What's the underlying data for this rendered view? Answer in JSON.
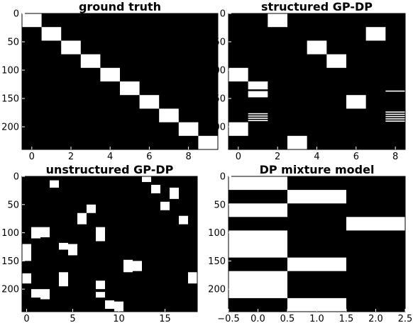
{
  "chart_data": [
    {
      "type": "heatmap",
      "title": "ground truth",
      "x_ticks": [
        "0",
        "2",
        "4",
        "6",
        "8"
      ],
      "x_tick_values": [
        0,
        2,
        4,
        6,
        8
      ],
      "y_ticks": [
        "0",
        "50",
        "100",
        "150",
        "200"
      ],
      "y_tick_values": [
        0,
        50,
        100,
        150,
        200
      ],
      "xlim": [
        -0.5,
        9.5
      ],
      "ylim": [
        240,
        0
      ],
      "colormap": [
        "#000000",
        "#ffffff"
      ],
      "cells": [
        {
          "x": 0,
          "y0": 0,
          "y1": 24
        },
        {
          "x": 1,
          "y0": 24,
          "y1": 48
        },
        {
          "x": 2,
          "y0": 48,
          "y1": 72
        },
        {
          "x": 3,
          "y0": 72,
          "y1": 96
        },
        {
          "x": 4,
          "y0": 96,
          "y1": 120
        },
        {
          "x": 5,
          "y0": 120,
          "y1": 144
        },
        {
          "x": 6,
          "y0": 144,
          "y1": 168
        },
        {
          "x": 7,
          "y0": 168,
          "y1": 192
        },
        {
          "x": 8,
          "y0": 192,
          "y1": 216
        },
        {
          "x": 9,
          "y0": 216,
          "y1": 240
        }
      ]
    },
    {
      "type": "heatmap",
      "title": "structured GP-DP",
      "x_ticks": [
        "0",
        "2",
        "4",
        "6",
        "8"
      ],
      "x_tick_values": [
        0,
        2,
        4,
        6,
        8
      ],
      "y_ticks": [
        "0",
        "50",
        "100",
        "150",
        "200"
      ],
      "y_tick_values": [
        0,
        50,
        100,
        150,
        200
      ],
      "xlim": [
        -0.5,
        8.5
      ],
      "ylim": [
        240,
        0
      ],
      "colormap": [
        "#000000",
        "#ffffff"
      ],
      "cells": [
        {
          "x": 2,
          "y0": 0,
          "y1": 24
        },
        {
          "x": 7,
          "y0": 24,
          "y1": 48
        },
        {
          "x": 4,
          "y0": 48,
          "y1": 72
        },
        {
          "x": 5,
          "y0": 72,
          "y1": 96
        },
        {
          "x": 0,
          "y0": 96,
          "y1": 120
        },
        {
          "x": 1,
          "y0": 120,
          "y1": 134
        },
        {
          "x": 1,
          "y0": 137,
          "y1": 148
        },
        {
          "x": 8,
          "y0": 136,
          "y1": 138
        },
        {
          "x": 6,
          "y0": 144,
          "y1": 168
        },
        {
          "x": 1,
          "y0": 176,
          "y1": 178
        },
        {
          "x": 1,
          "y0": 180,
          "y1": 182
        },
        {
          "x": 1,
          "y0": 184,
          "y1": 186
        },
        {
          "x": 1,
          "y0": 188,
          "y1": 190
        },
        {
          "x": 8,
          "y0": 173,
          "y1": 175
        },
        {
          "x": 8,
          "y0": 177,
          "y1": 179
        },
        {
          "x": 8,
          "y0": 181,
          "y1": 183
        },
        {
          "x": 8,
          "y0": 185,
          "y1": 187
        },
        {
          "x": 8,
          "y0": 189,
          "y1": 191
        },
        {
          "x": 0,
          "y0": 192,
          "y1": 216
        },
        {
          "x": 3,
          "y0": 216,
          "y1": 240
        }
      ]
    },
    {
      "type": "heatmap",
      "title": "unstructured GP-DP",
      "x_ticks": [
        "0",
        "5",
        "10",
        "15"
      ],
      "x_tick_values": [
        0,
        5,
        10,
        15
      ],
      "y_ticks": [
        "0",
        "50",
        "100",
        "150",
        "200"
      ],
      "y_tick_values": [
        0,
        50,
        100,
        150,
        200
      ],
      "xlim": [
        -0.5,
        18.5
      ],
      "ylim": [
        240,
        0
      ],
      "colormap": [
        "#000000",
        "#ffffff"
      ],
      "cells": [
        {
          "x": 3,
          "y0": 7,
          "y1": 20
        },
        {
          "x": 13,
          "y0": 0,
          "y1": 10
        },
        {
          "x": 14,
          "y0": 15,
          "y1": 30
        },
        {
          "x": 16,
          "y0": 20,
          "y1": 40
        },
        {
          "x": 15,
          "y0": 45,
          "y1": 60
        },
        {
          "x": 7,
          "y0": 50,
          "y1": 65
        },
        {
          "x": 6,
          "y0": 65,
          "y1": 85
        },
        {
          "x": 17,
          "y0": 70,
          "y1": 85
        },
        {
          "x": 1,
          "y0": 90,
          "y1": 110
        },
        {
          "x": 2,
          "y0": 90,
          "y1": 108
        },
        {
          "x": 8,
          "y0": 90,
          "y1": 115
        },
        {
          "x": 0,
          "y0": 120,
          "y1": 150
        },
        {
          "x": 4,
          "y0": 118,
          "y1": 130
        },
        {
          "x": 5,
          "y0": 120,
          "y1": 140
        },
        {
          "x": 11,
          "y0": 148,
          "y1": 170
        },
        {
          "x": 12,
          "y0": 150,
          "y1": 168
        },
        {
          "x": 0,
          "y0": 172,
          "y1": 190
        },
        {
          "x": 4,
          "y0": 170,
          "y1": 195
        },
        {
          "x": 8,
          "y0": 185,
          "y1": 200
        },
        {
          "x": 18,
          "y0": 170,
          "y1": 190
        },
        {
          "x": 1,
          "y0": 200,
          "y1": 215
        },
        {
          "x": 2,
          "y0": 200,
          "y1": 218
        },
        {
          "x": 8,
          "y0": 205,
          "y1": 215
        },
        {
          "x": 9,
          "y0": 220,
          "y1": 235
        },
        {
          "x": 10,
          "y0": 222,
          "y1": 240
        }
      ]
    },
    {
      "type": "heatmap",
      "title": "DP mixture model",
      "x_ticks": [
        "−0.5",
        "0.0",
        "0.5",
        "1.0",
        "1.5",
        "2.0",
        "2.5"
      ],
      "x_tick_values": [
        -0.5,
        0,
        0.5,
        1,
        1.5,
        2,
        2.5
      ],
      "y_ticks": [
        "0",
        "50",
        "100",
        "150",
        "200"
      ],
      "y_tick_values": [
        0,
        50,
        100,
        150,
        200
      ],
      "xlim": [
        -0.5,
        2.5
      ],
      "ylim": [
        240,
        0
      ],
      "colormap": [
        "#000000",
        "#ffffff"
      ],
      "cells": [
        {
          "x": 0,
          "y0": 0,
          "y1": 24
        },
        {
          "x": 1,
          "y0": 24,
          "y1": 48
        },
        {
          "x": 0,
          "y0": 48,
          "y1": 72
        },
        {
          "x": 2,
          "y0": 72,
          "y1": 96
        },
        {
          "x": 0,
          "y0": 96,
          "y1": 144
        },
        {
          "x": 1,
          "y0": 144,
          "y1": 168
        },
        {
          "x": 0,
          "y0": 168,
          "y1": 216
        },
        {
          "x": 1,
          "y0": 216,
          "y1": 240
        }
      ]
    }
  ]
}
